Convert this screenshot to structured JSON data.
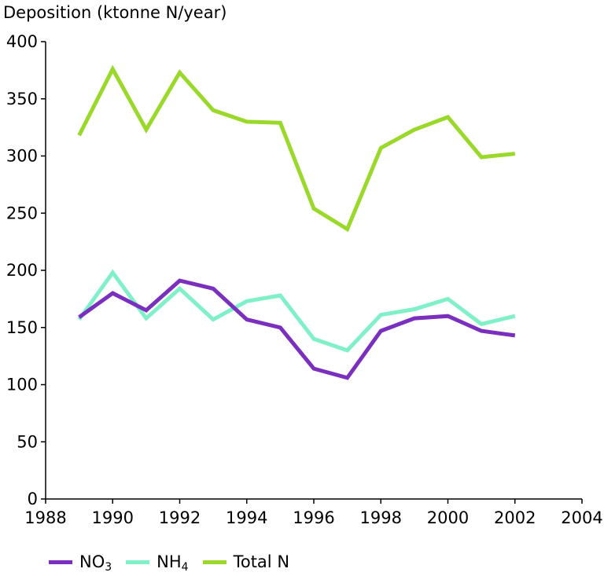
{
  "chart_data": {
    "type": "line",
    "title": "",
    "ylabel": "Deposition (ktonne N/year)",
    "xlabel": "",
    "xlim": [
      1988,
      2004
    ],
    "ylim": [
      0,
      400
    ],
    "xticks": [
      1988,
      1990,
      1992,
      1994,
      1996,
      1998,
      2000,
      2002,
      2004
    ],
    "yticks": [
      0,
      50,
      100,
      150,
      200,
      250,
      300,
      350,
      400
    ],
    "grid": false,
    "legend_position": "bottom-left",
    "x": [
      1989,
      1990,
      1991,
      1992,
      1993,
      1994,
      1995,
      1996,
      1997,
      1998,
      1999,
      2000,
      2001,
      2002
    ],
    "series": [
      {
        "name": "NO3",
        "label_main": "NO",
        "label_sub": "3",
        "color": "#7b2fbf",
        "values": [
          159,
          180,
          165,
          191,
          184,
          157,
          150,
          114,
          106,
          147,
          158,
          160,
          147,
          143
        ]
      },
      {
        "name": "NH4",
        "label_main": "NH",
        "label_sub": "4",
        "color": "#7ff0c8",
        "values": [
          157,
          198,
          158,
          184,
          157,
          173,
          178,
          140,
          130,
          161,
          166,
          175,
          153,
          160
        ]
      },
      {
        "name": "Total N",
        "label_main": "Total N",
        "label_sub": "",
        "color": "#9ad92a",
        "values": [
          318,
          376,
          323,
          373,
          340,
          330,
          329,
          254,
          236,
          307,
          323,
          334,
          299,
          302
        ]
      }
    ]
  }
}
